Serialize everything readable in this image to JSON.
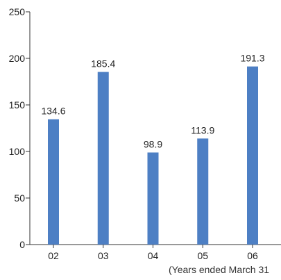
{
  "chart_data": {
    "type": "bar",
    "categories": [
      "02",
      "03",
      "04",
      "05",
      "06"
    ],
    "values": [
      134.6,
      185.4,
      98.9,
      113.9,
      191.3
    ],
    "value_labels": [
      "134.6",
      "185.4",
      "98.9",
      "113.9",
      "191.3"
    ],
    "y_ticks": [
      0,
      50,
      100,
      150,
      200,
      250
    ],
    "ylim": [
      0,
      250
    ],
    "grid": false,
    "bar_color": "#4d7fc4",
    "x_caption": "(Years ended March 31"
  }
}
